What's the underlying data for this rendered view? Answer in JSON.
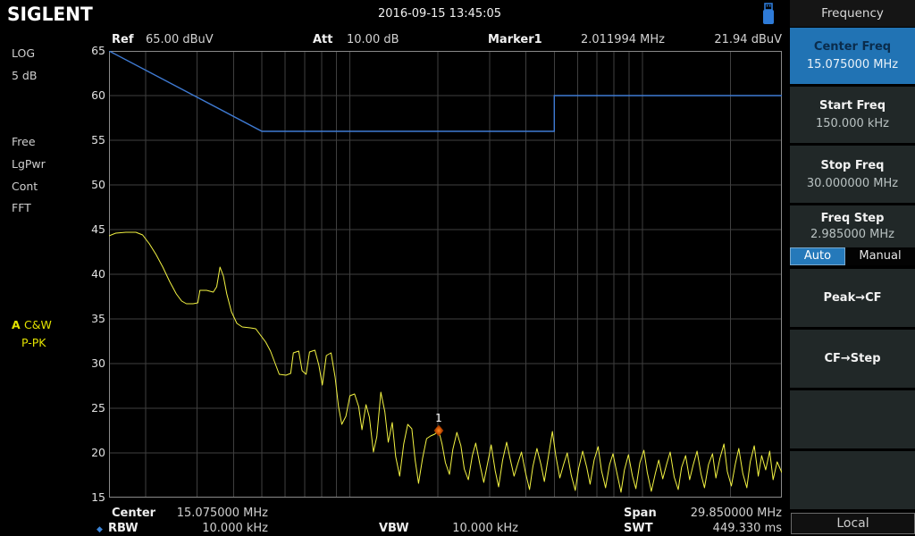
{
  "top_bar": {
    "logo": "SIGLENT",
    "datetime": "2016-09-15  13:45:05",
    "usb_color": "#2e7bd8"
  },
  "header": {
    "ref_label": "Ref",
    "ref_value": "65.00 dBuV",
    "att_label": "Att",
    "att_value": "10.00 dB",
    "marker_label": "Marker1",
    "marker_freq": "2.011994 MHz",
    "marker_ampl": "21.94 dBuV"
  },
  "left_panel": {
    "log_label": "LOG",
    "scale_label": "5 dB",
    "trigger_label": "Free",
    "power_label": "LgPwr",
    "sweep_label": "Cont",
    "fft_label": "FFT",
    "trace_prefix": "A",
    "trace_mode": "C&W",
    "trace_detector": "P-PK"
  },
  "footer": {
    "center_label": "Center",
    "center_value": "15.075000 MHz",
    "rbw_bullet_glyph": "◆",
    "rbw_label": "RBW",
    "rbw_value": "10.000 kHz",
    "vbw_label": "VBW",
    "vbw_value": "10.000 kHz",
    "span_label": "Span",
    "span_value": "29.850000 MHz",
    "swt_label": "SWT",
    "swt_value": "449.330 ms"
  },
  "sidebar": {
    "title": "Frequency",
    "buttons": [
      {
        "label": "Center Freq",
        "value": "15.075000 MHz",
        "selected": true
      },
      {
        "label": "Start Freq",
        "value": "150.000 kHz",
        "selected": false
      },
      {
        "label": "Stop Freq",
        "value": "30.000000 MHz",
        "selected": false
      },
      {
        "label": "Freq Step",
        "value": "2.985000 MHz",
        "selected": false,
        "toggle": {
          "options": [
            "Auto",
            "Manual"
          ],
          "selected": "Auto"
        }
      },
      {
        "label": "Peak→CF",
        "value": "",
        "selected": false
      },
      {
        "label": "CF→Step",
        "value": "",
        "selected": false
      },
      {
        "label": "",
        "value": "",
        "selected": false
      },
      {
        "label": "",
        "value": "",
        "selected": false
      }
    ],
    "local_label": "Local",
    "accent_color": "#2173b4"
  },
  "chart_data": {
    "type": "line",
    "x_axis": {
      "scale": "log",
      "unit": "MHz",
      "min": 0.15,
      "max": 30,
      "gridlines_mhz": [
        0.2,
        0.3,
        0.4,
        0.5,
        0.6,
        0.7,
        0.8,
        0.9,
        1,
        2,
        3,
        4,
        5,
        6,
        7,
        8,
        9,
        10,
        20,
        30
      ]
    },
    "y_axis": {
      "unit": "dBuV",
      "min": 15,
      "max": 65,
      "step": 5,
      "tick_labels": [
        "65",
        "60",
        "55",
        "50",
        "45",
        "40",
        "35",
        "30",
        "25",
        "20",
        "15"
      ]
    },
    "limit_line": {
      "name": "limit-line",
      "color": "#3f7bd4",
      "points_pct_db": [
        [
          0,
          65
        ],
        [
          22.72,
          56
        ],
        [
          66.18,
          56
        ],
        [
          66.18,
          60
        ],
        [
          100,
          60
        ]
      ]
    },
    "trace": {
      "name": "trace-a",
      "detector": "P-PK",
      "color": "#f3f342",
      "points_pct_db": [
        [
          0,
          44.3
        ],
        [
          1,
          44.6
        ],
        [
          2.5,
          44.7
        ],
        [
          4,
          44.7
        ],
        [
          5,
          44.4
        ],
        [
          6,
          43.4
        ],
        [
          7,
          42.2
        ],
        [
          8,
          40.8
        ],
        [
          9,
          39.2
        ],
        [
          10,
          37.8
        ],
        [
          10.8,
          37.0
        ],
        [
          11.5,
          36.7
        ],
        [
          12.5,
          36.7
        ],
        [
          13.2,
          36.8
        ],
        [
          13.5,
          38.2
        ],
        [
          14.5,
          38.2
        ],
        [
          15.5,
          38.0
        ],
        [
          16,
          38.6
        ],
        [
          16.5,
          40.8
        ],
        [
          17,
          39.8
        ],
        [
          17.5,
          37.8
        ],
        [
          18.2,
          35.8
        ],
        [
          19,
          34.5
        ],
        [
          19.8,
          34.1
        ],
        [
          21,
          34.0
        ],
        [
          21.8,
          33.9
        ],
        [
          22.5,
          33.2
        ],
        [
          23.3,
          32.4
        ],
        [
          24,
          31.4
        ],
        [
          24.7,
          30.0
        ],
        [
          25.3,
          28.8
        ],
        [
          26.3,
          28.7
        ],
        [
          27,
          28.9
        ],
        [
          27.4,
          31.2
        ],
        [
          28.2,
          31.4
        ],
        [
          28.7,
          29.2
        ],
        [
          29.3,
          28.8
        ],
        [
          29.8,
          31.3
        ],
        [
          30.6,
          31.5
        ],
        [
          31.2,
          29.8
        ],
        [
          31.7,
          27.6
        ],
        [
          32.3,
          30.9
        ],
        [
          33,
          31.2
        ],
        [
          33.6,
          28.5
        ],
        [
          34.1,
          25.2
        ],
        [
          34.6,
          23.2
        ],
        [
          35.2,
          24.1
        ],
        [
          35.8,
          26.4
        ],
        [
          36.5,
          26.6
        ],
        [
          37.1,
          25.2
        ],
        [
          37.6,
          22.6
        ],
        [
          38.2,
          25.4
        ],
        [
          38.7,
          24.0
        ],
        [
          39.3,
          20.1
        ],
        [
          39.8,
          21.8
        ],
        [
          40.4,
          26.8
        ],
        [
          41,
          24.6
        ],
        [
          41.5,
          21.2
        ],
        [
          42.1,
          23.4
        ],
        [
          42.6,
          19.6
        ],
        [
          43.2,
          17.4
        ],
        [
          43.8,
          21.0
        ],
        [
          44.4,
          23.2
        ],
        [
          45,
          22.7
        ],
        [
          45.5,
          19.2
        ],
        [
          46,
          16.6
        ],
        [
          46.6,
          19.4
        ],
        [
          47.2,
          21.6
        ],
        [
          47.8,
          21.9
        ],
        [
          48.4,
          22.1
        ],
        [
          49,
          22.5
        ],
        [
          49.5,
          21.0
        ],
        [
          50,
          18.9
        ],
        [
          50.6,
          17.6
        ],
        [
          51.1,
          20.4
        ],
        [
          51.7,
          22.3
        ],
        [
          52.3,
          20.8
        ],
        [
          52.8,
          18.2
        ],
        [
          53.4,
          17.0
        ],
        [
          54,
          19.7
        ],
        [
          54.5,
          21.1
        ],
        [
          55.1,
          18.8
        ],
        [
          55.7,
          16.7
        ],
        [
          56.2,
          18.6
        ],
        [
          56.8,
          20.9
        ],
        [
          57.4,
          18.0
        ],
        [
          57.9,
          16.2
        ],
        [
          58.5,
          19.2
        ],
        [
          59.1,
          21.2
        ],
        [
          59.6,
          19.4
        ],
        [
          60.2,
          17.4
        ],
        [
          60.8,
          18.9
        ],
        [
          61.3,
          20.1
        ],
        [
          61.9,
          17.8
        ],
        [
          62.5,
          15.9
        ],
        [
          63,
          18.5
        ],
        [
          63.6,
          20.5
        ],
        [
          64.2,
          18.7
        ],
        [
          64.7,
          16.8
        ],
        [
          65.3,
          19.6
        ],
        [
          65.9,
          22.4
        ],
        [
          66.4,
          19.7
        ],
        [
          67,
          17.2
        ],
        [
          67.6,
          18.8
        ],
        [
          68.1,
          20.0
        ],
        [
          68.7,
          17.5
        ],
        [
          69.3,
          15.8
        ],
        [
          69.8,
          18.3
        ],
        [
          70.4,
          20.2
        ],
        [
          71,
          18.4
        ],
        [
          71.5,
          16.5
        ],
        [
          72.1,
          19.2
        ],
        [
          72.7,
          20.7
        ],
        [
          73.2,
          18.0
        ],
        [
          73.8,
          16.1
        ],
        [
          74.4,
          18.7
        ],
        [
          74.9,
          19.9
        ],
        [
          75.5,
          17.7
        ],
        [
          76.1,
          15.6
        ],
        [
          76.6,
          18.1
        ],
        [
          77.2,
          19.8
        ],
        [
          77.8,
          17.4
        ],
        [
          78.3,
          16.0
        ],
        [
          78.9,
          18.9
        ],
        [
          79.5,
          20.3
        ],
        [
          80,
          17.8
        ],
        [
          80.6,
          15.7
        ],
        [
          81.2,
          17.7
        ],
        [
          81.7,
          19.2
        ],
        [
          82.3,
          17.1
        ],
        [
          82.9,
          18.8
        ],
        [
          83.4,
          20.1
        ],
        [
          84,
          17.3
        ],
        [
          84.6,
          15.9
        ],
        [
          85.1,
          18.4
        ],
        [
          85.7,
          19.7
        ],
        [
          86.3,
          17.0
        ],
        [
          86.8,
          18.6
        ],
        [
          87.4,
          20.2
        ],
        [
          88,
          17.6
        ],
        [
          88.5,
          16.1
        ],
        [
          89.1,
          18.7
        ],
        [
          89.7,
          19.9
        ],
        [
          90.2,
          17.2
        ],
        [
          90.8,
          19.4
        ],
        [
          91.4,
          21.0
        ],
        [
          91.9,
          17.9
        ],
        [
          92.5,
          16.3
        ],
        [
          93.1,
          18.8
        ],
        [
          93.6,
          20.5
        ],
        [
          94.2,
          17.7
        ],
        [
          94.8,
          16.1
        ],
        [
          95.3,
          19.0
        ],
        [
          95.9,
          20.8
        ],
        [
          96.5,
          17.4
        ],
        [
          97,
          19.7
        ],
        [
          97.6,
          18.1
        ],
        [
          98.2,
          20.2
        ],
        [
          98.7,
          17.0
        ],
        [
          99.3,
          19.0
        ],
        [
          100,
          17.8
        ]
      ]
    },
    "marker": {
      "id": "1",
      "pct": 49.0,
      "db": 22.5,
      "freq": "2.011994 MHz",
      "amplitude": "21.94 dBuV",
      "color": "#e06010"
    }
  }
}
